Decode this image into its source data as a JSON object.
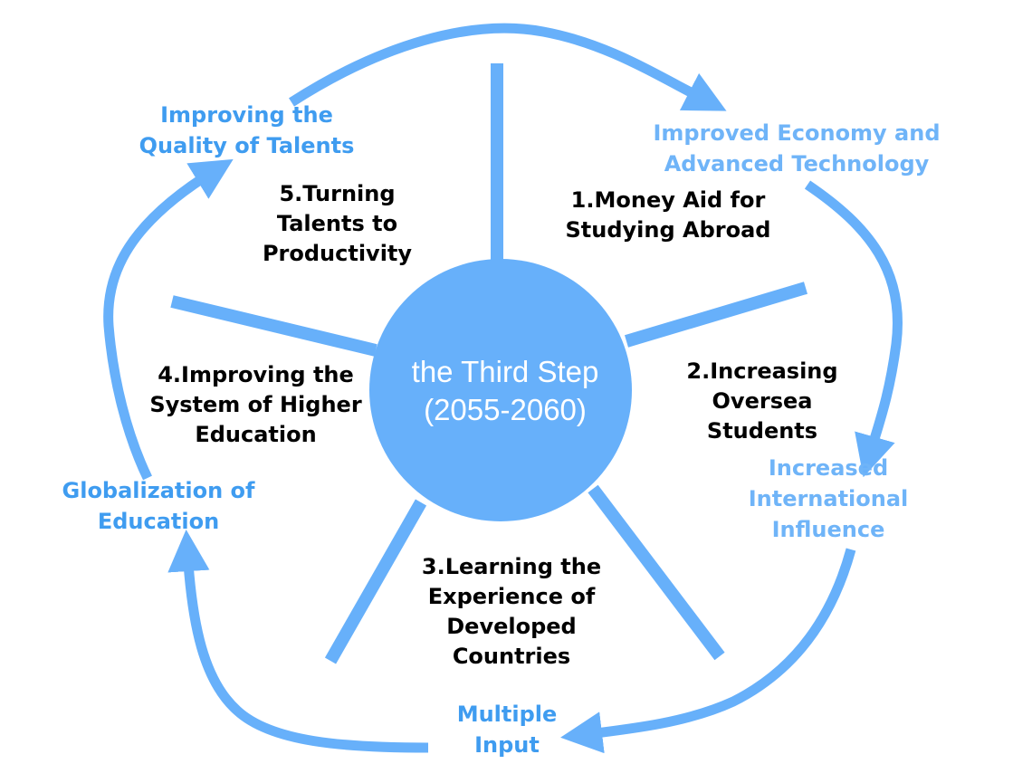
{
  "center": {
    "line1": "the Third Step",
    "line2": "(2055-2060)"
  },
  "steps": [
    {
      "lines": [
        "1.Money Aid for",
        "Studying Abroad"
      ]
    },
    {
      "lines": [
        "2.Increasing",
        "Oversea",
        "Students"
      ]
    },
    {
      "lines": [
        "3.Learning the",
        "Experience of",
        "Developed",
        "Countries"
      ]
    },
    {
      "lines": [
        "4.Improving the",
        "System of Higher",
        "Education"
      ]
    },
    {
      "lines": [
        "5.Turning",
        "Talents to",
        "Productivity"
      ]
    }
  ],
  "outcomes": {
    "economy": [
      "Improved Economy and",
      "Advanced Technology"
    ],
    "influence": [
      "Increased",
      "International",
      "Influence"
    ],
    "input": [
      "Multiple",
      "Input"
    ],
    "globalization": [
      "Globalization of",
      "Education"
    ],
    "quality": [
      "Improving the",
      "Quality of Talents"
    ]
  },
  "colors": {
    "circle_fill": "#67b0fa",
    "spoke": "#67b0fa",
    "cycle_arrow": "#67b0fa",
    "outcome_text_dark": "#3f9cf0",
    "outcome_text_light": "#6fb4f8",
    "step_text": "#000000",
    "center_text": "#ffffff"
  }
}
